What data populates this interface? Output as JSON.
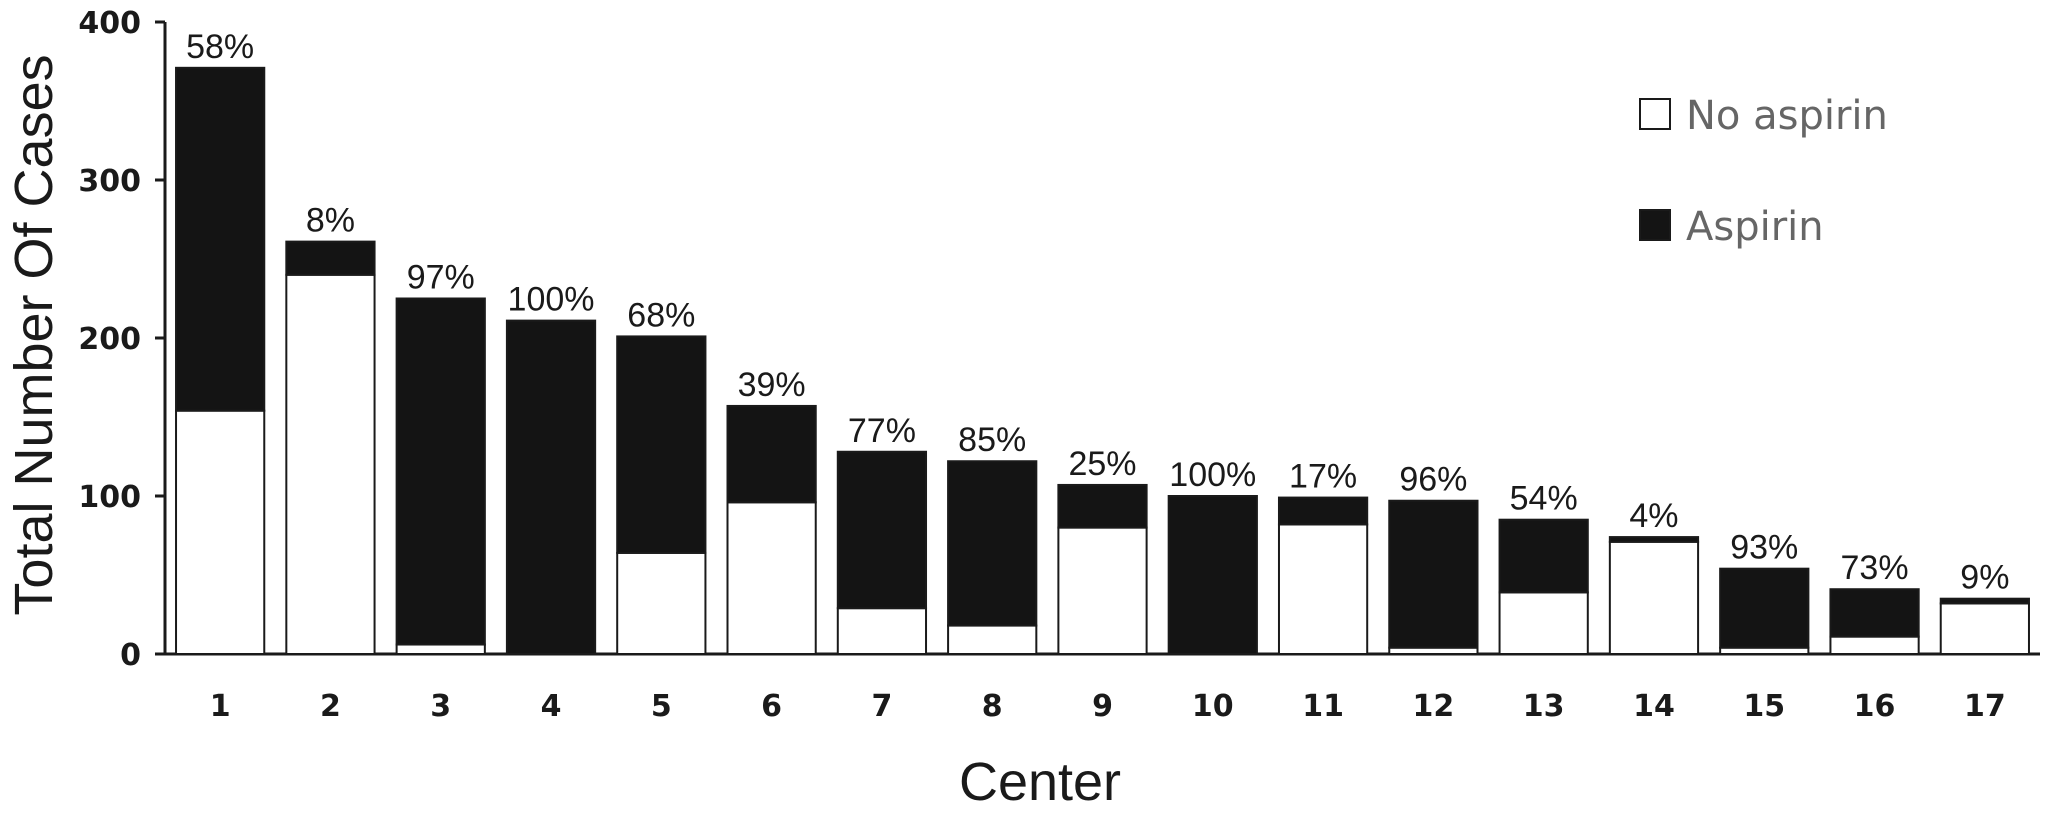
{
  "chart_data": {
    "type": "bar",
    "stacked": true,
    "xlabel": "Center",
    "ylabel": "Total Number Of Cases",
    "ylim": [
      0,
      400
    ],
    "yticks": [
      0,
      100,
      200,
      300,
      400
    ],
    "categories": [
      "1",
      "2",
      "3",
      "4",
      "5",
      "6",
      "7",
      "8",
      "9",
      "10",
      "11",
      "12",
      "13",
      "14",
      "15",
      "16",
      "17"
    ],
    "series": [
      {
        "name": "No aspirin",
        "color": "#ffffff",
        "values": [
          154,
          240,
          6,
          0,
          64,
          96,
          29,
          18,
          80,
          0,
          82,
          4,
          39,
          71,
          4,
          11,
          32
        ]
      },
      {
        "name": "Aspirin",
        "color": "#141414",
        "values": [
          217,
          21,
          219,
          211,
          137,
          61,
          99,
          104,
          27,
          100,
          17,
          93,
          46,
          3,
          50,
          30,
          3
        ]
      }
    ],
    "data_labels": [
      "58%",
      "8%",
      "97%",
      "100%",
      "68%",
      "39%",
      "77%",
      "85%",
      "25%",
      "100%",
      "17%",
      "96%",
      "54%",
      "4%",
      "93%",
      "73%",
      "9%"
    ],
    "grid": false,
    "legend_position": "top-right"
  }
}
